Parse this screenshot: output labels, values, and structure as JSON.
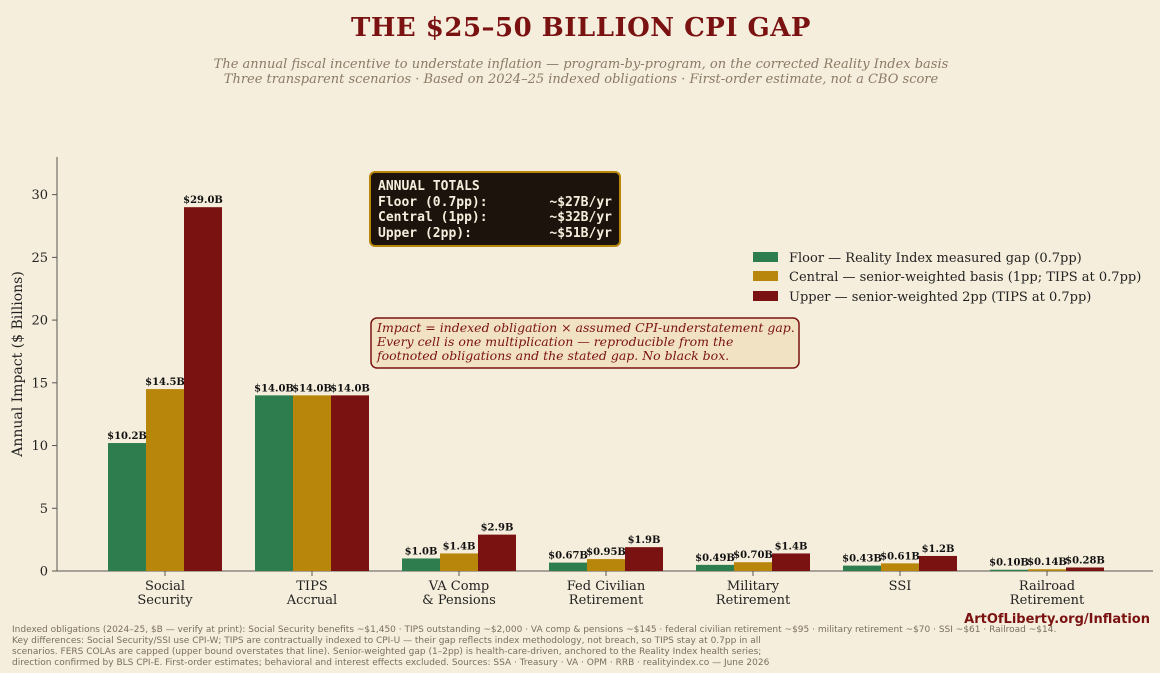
{
  "header": {
    "title": "THE $25–50 BILLION CPI GAP",
    "subtitle_lines": [
      "The annual fiscal incentive to understate inflation — program-by-program, on the corrected Reality Index basis",
      "Three transparent scenarios · Based on 2024–25 indexed obligations · First-order estimate, not a CBO score"
    ]
  },
  "chart_data": {
    "type": "bar",
    "ylabel": "Annual Impact ($ Billions)",
    "ylim": [
      0,
      33
    ],
    "yticks": [
      0,
      5,
      10,
      15,
      20,
      25,
      30
    ],
    "categories": [
      [
        "Social",
        "Security"
      ],
      [
        "TIPS",
        "Accrual"
      ],
      [
        "VA Comp",
        "& Pensions"
      ],
      [
        "Fed Civilian",
        "Retirement"
      ],
      [
        "Military",
        "Retirement"
      ],
      [
        "SSI"
      ],
      [
        "Railroad",
        "Retirement"
      ]
    ],
    "series": [
      {
        "name": "Floor — Reality Index measured gap (0.7pp)",
        "color": "#2e7d4f",
        "values": [
          10.2,
          14.0,
          1.0,
          0.67,
          0.49,
          0.43,
          0.1
        ],
        "labels": [
          "$10.2B",
          "$14.0B",
          "$1.0B",
          "$0.67B",
          "$0.49B",
          "$0.43B",
          "$0.10B"
        ]
      },
      {
        "name": "Central — senior-weighted basis (1pp; TIPS at 0.7pp)",
        "color": "#b8860b",
        "values": [
          14.5,
          14.0,
          1.4,
          0.95,
          0.7,
          0.61,
          0.14
        ],
        "labels": [
          "$14.5B",
          "$14.0B",
          "$1.4B",
          "$0.95B",
          "$0.70B",
          "$0.61B",
          "$0.14B"
        ]
      },
      {
        "name": "Upper — senior-weighted 2pp (TIPS at 0.7pp)",
        "color": "#7a1212",
        "values": [
          29.0,
          14.0,
          2.9,
          1.9,
          1.4,
          1.2,
          0.28
        ],
        "labels": [
          "$29.0B",
          "$14.0B",
          "$2.9B",
          "$1.9B",
          "$1.4B",
          "$1.2B",
          "$0.28B"
        ]
      }
    ],
    "legend_position": "upper-right",
    "grid": false,
    "totals_box": {
      "heading": "ANNUAL TOTALS",
      "rows": [
        {
          "label": "Floor (0.7pp):",
          "value": "~$27B/yr"
        },
        {
          "label": "Central (1pp):",
          "value": "~$32B/yr"
        },
        {
          "label": "Upper (2pp):",
          "value": "~$51B/yr"
        }
      ]
    },
    "method_note": [
      "Impact = indexed obligation × assumed CPI-understatement gap.",
      "Every cell is one multiplication — reproducible from the",
      "footnoted obligations and the stated gap. No black box."
    ]
  },
  "brand": "ArtOfLiberty.org/Inflation",
  "footnote_lines": [
    "Indexed obligations (2024–25, $B — verify at print): Social Security benefits ~$1,450 · TIPS outstanding ~$2,000 · VA comp & pensions ~$145 · federal civilian retirement ~$95 · military retirement ~$70 · SSI ~$61 · Railroad ~$14.",
    "Key differences: Social Security/SSI use CPI-W; TIPS are contractually indexed to CPI-U — their gap reflects index methodology, not breach, so TIPS stay at 0.7pp in all",
    "scenarios. FERS COLAs are capped (upper bound overstates that line). Senior-weighted gap (1–2pp) is health-care-driven, anchored to the Reality Index health series;",
    "direction confirmed by BLS CPI-E. First-order estimates; behavioral and interest effects excluded. Sources: SSA · Treasury · VA · OPM · RRB · realityindex.co — June 2026"
  ]
}
